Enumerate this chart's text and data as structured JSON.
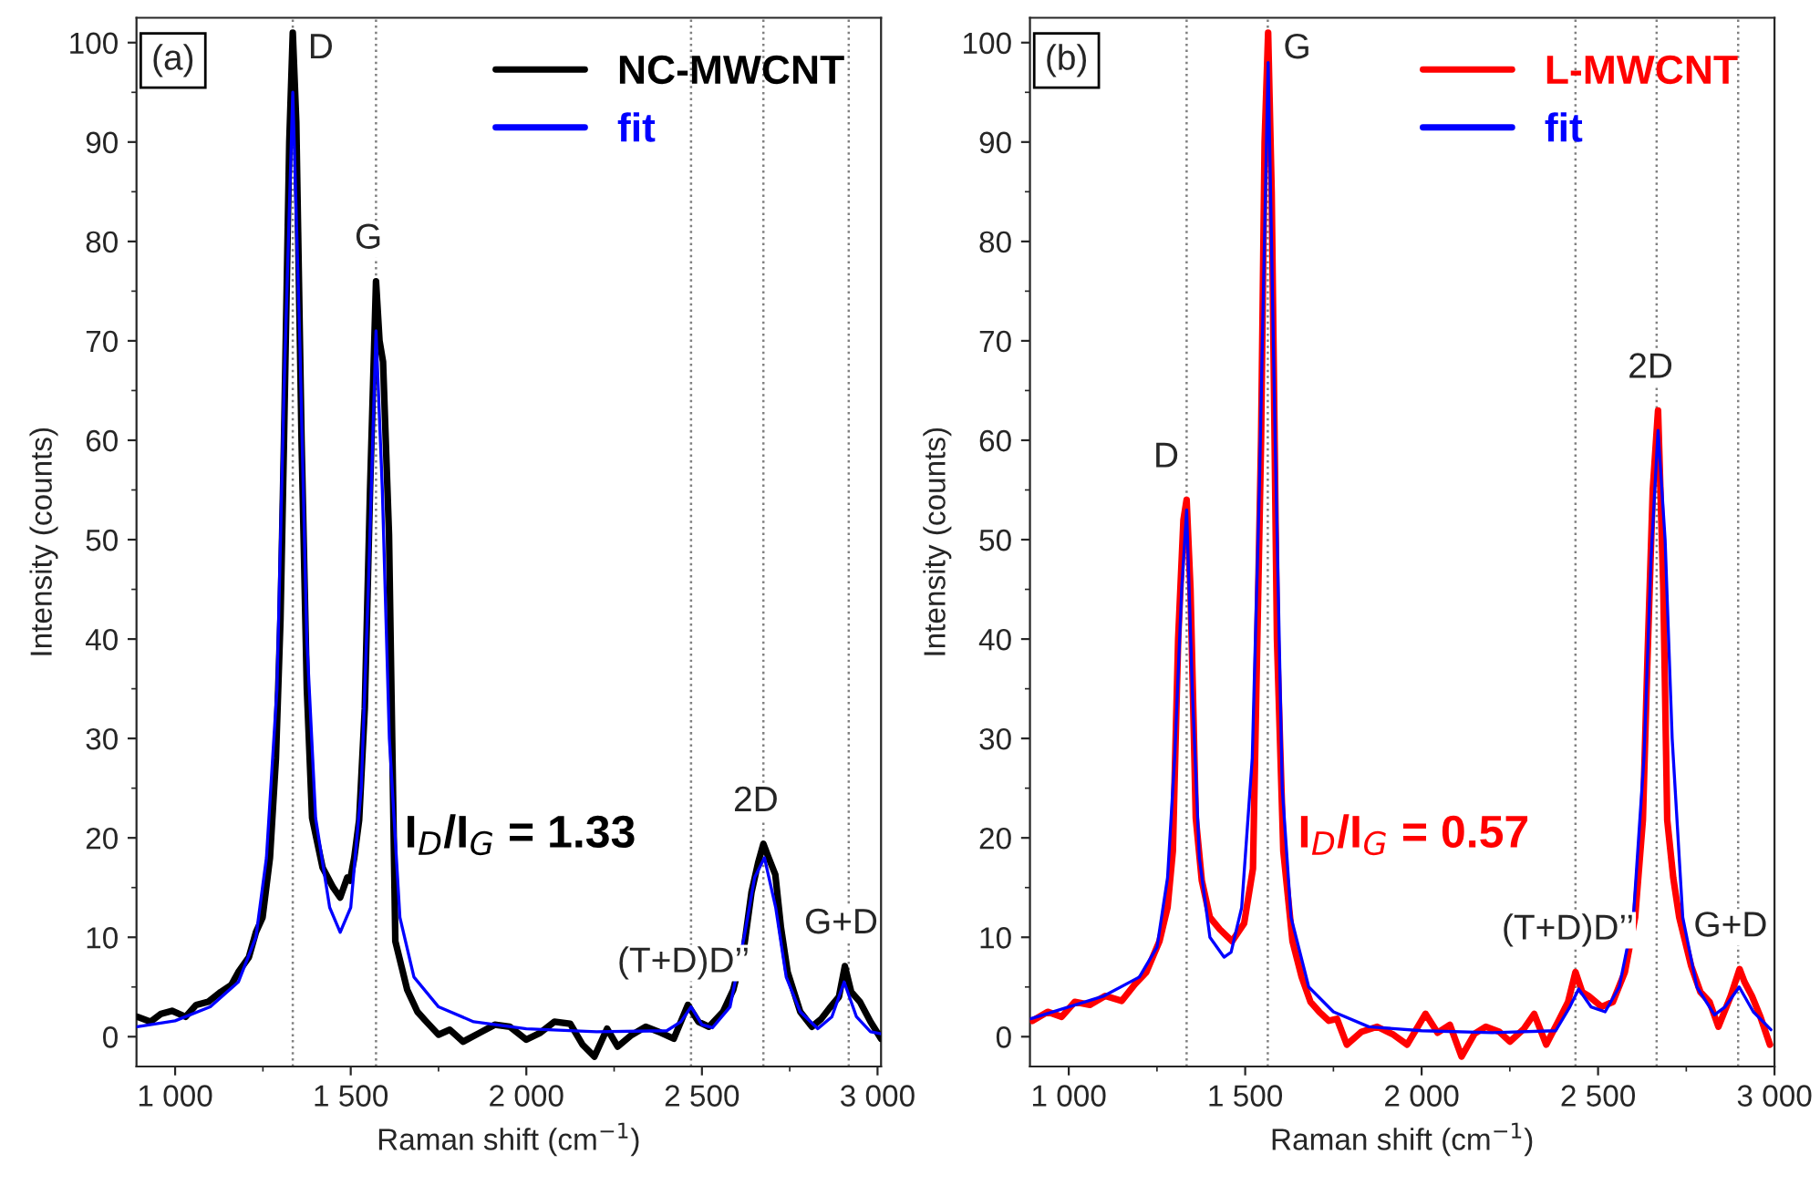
{
  "chart_data": [
    {
      "type": "line",
      "xlabel": "Raman shift (cm$^{−1}$)",
      "ylabel": "Intensity (counts)",
      "xlim": [
        890,
        3010
      ],
      "ylim": [
        -3,
        102.5
      ],
      "xticks": [
        {
          "value": 1000,
          "label": "1 000"
        },
        {
          "value": 1500,
          "label": "1 500"
        },
        {
          "value": 2000,
          "label": "2 000"
        },
        {
          "value": 2500,
          "label": "2 500"
        },
        {
          "value": 3000,
          "label": "3 000"
        }
      ],
      "yticks": [
        0,
        10,
        20,
        30,
        40,
        50,
        60,
        70,
        80,
        90,
        100
      ],
      "legend": "top right",
      "grid": false,
      "series": [
        {
          "name": "NC-MWCNT",
          "color": "#000000",
          "x": [
            892,
            930,
            960,
            991,
            1030,
            1060,
            1094,
            1130,
            1160,
            1180,
            1210,
            1230,
            1249,
            1270,
            1287,
            1300,
            1310,
            1325,
            1335,
            1345,
            1360,
            1375,
            1390,
            1420,
            1450,
            1470,
            1490,
            1498,
            1510,
            1524,
            1540,
            1555,
            1572,
            1582,
            1592,
            1609,
            1627,
            1645,
            1661,
            1690,
            1713,
            1750,
            1782,
            1820,
            1868,
            1910,
            1953,
            2000,
            2040,
            2080,
            2125,
            2160,
            2194,
            2230,
            2260,
            2297,
            2340,
            2383,
            2420,
            2460,
            2490,
            2520,
            2560,
            2589,
            2620,
            2641,
            2660,
            2675,
            2690,
            2709,
            2725,
            2744,
            2780,
            2813,
            2840,
            2864,
            2890,
            2907,
            2925,
            2950,
            2980,
            3010
          ],
          "values": [
            2.0,
            1.5,
            2.3,
            2.6,
            2.0,
            3.2,
            3.5,
            4.5,
            5.2,
            6.5,
            8.0,
            10.5,
            12,
            18,
            28,
            42,
            60,
            90,
            101,
            92,
            60,
            35,
            22,
            17,
            15,
            14,
            16,
            15.7,
            18,
            21.8,
            33,
            55,
            76,
            70,
            67.9,
            50.5,
            9.6,
            7.0,
            4.7,
            2.5,
            1.6,
            0.2,
            0.7,
            -0.5,
            0.4,
            1.2,
            1.0,
            -0.3,
            0.4,
            1.5,
            1.3,
            -0.8,
            -2.0,
            0.8,
            -1.0,
            0.1,
            1.0,
            0.4,
            -0.2,
            3.2,
            1.5,
            1.0,
            2.5,
            4.7,
            9.0,
            14.5,
            17.5,
            19.4,
            18.0,
            16.3,
            11.0,
            6.5,
            2.5,
            1.0,
            1.8,
            2.9,
            4.0,
            7.1,
            4.5,
            3.5,
            1.5,
            -0.2
          ]
        },
        {
          "name": "fit",
          "color": "#0000ff",
          "x": [
            892,
            1000,
            1100,
            1180,
            1230,
            1260,
            1290,
            1310,
            1335,
            1355,
            1375,
            1400,
            1440,
            1470,
            1500,
            1530,
            1550,
            1572,
            1590,
            1610,
            1640,
            1680,
            1750,
            1850,
            2000,
            2200,
            2400,
            2440,
            2469,
            2500,
            2530,
            2580,
            2620,
            2650,
            2678,
            2710,
            2740,
            2780,
            2830,
            2870,
            2905,
            2940,
            2980,
            3010
          ],
          "values": [
            1.0,
            1.6,
            3.0,
            5.5,
            10,
            18,
            35,
            65,
            95,
            70,
            40,
            22,
            13,
            10.5,
            13,
            25,
            45,
            71,
            55,
            30,
            12,
            6,
            3,
            1.5,
            0.8,
            0.5,
            0.6,
            1.5,
            3.0,
            1.2,
            0.9,
            3,
            10,
            16,
            18,
            13,
            6,
            2.5,
            0.8,
            2,
            5.5,
            2,
            0.5,
            0.3
          ]
        }
      ],
      "ref_lines": [
        {
          "axis": "x",
          "value": 1335,
          "color": "#808080",
          "line_style": "dotted"
        },
        {
          "axis": "x",
          "value": 1572,
          "color": "#808080",
          "line_style": "dotted"
        },
        {
          "axis": "x",
          "value": 2469,
          "color": "#808080",
          "line_style": "dotted"
        },
        {
          "axis": "x",
          "value": 2675,
          "color": "#808080",
          "line_style": "dotted"
        },
        {
          "axis": "x",
          "value": 2918,
          "color": "#808080",
          "line_style": "dotted"
        }
      ],
      "annotations": [
        "(a)",
        "I$_{D}$/I$_{G}$ = 1.33",
        {
          "text": "D",
          "x": 1335,
          "y": 101
        },
        {
          "text": "G",
          "x": 1572,
          "y": 76
        },
        {
          "text": "(T+D)D’’",
          "x": 2469,
          "y": 3.2
        },
        {
          "text": "2D",
          "x": 2675,
          "y": 19.4
        },
        {
          "text": "G+D",
          "x": 2918,
          "y": 7.1
        }
      ]
    },
    {
      "type": "line",
      "xlabel": "Raman shift (cm$^{−1}$)",
      "ylabel": "Intensity (counts)",
      "xlim": [
        890,
        3000
      ],
      "ylim": [
        -3,
        102.5
      ],
      "xticks": [
        {
          "value": 1000,
          "label": "1 000"
        },
        {
          "value": 1500,
          "label": "1 500"
        },
        {
          "value": 2000,
          "label": "2 000"
        },
        {
          "value": 2500,
          "label": "2 500"
        },
        {
          "value": 3000,
          "label": "3 000"
        }
      ],
      "yticks": [
        0,
        10,
        20,
        30,
        40,
        50,
        60,
        70,
        80,
        90,
        100
      ],
      "legend": "top right",
      "grid": false,
      "series": [
        {
          "name": "L-MWCNT",
          "color": "#ff0000",
          "x": [
            897,
            940,
            980,
            1017,
            1060,
            1103,
            1150,
            1188,
            1220,
            1257,
            1280,
            1295,
            1310,
            1325,
            1334,
            1345,
            1360,
            1377,
            1400,
            1428,
            1463,
            1497,
            1522,
            1545,
            1555,
            1565,
            1575,
            1590,
            1608,
            1634,
            1660,
            1685,
            1710,
            1737,
            1760,
            1788,
            1830,
            1874,
            1920,
            1959,
            2011,
            2045,
            2080,
            2113,
            2150,
            2182,
            2220,
            2250,
            2290,
            2319,
            2353,
            2388,
            2415,
            2436,
            2455,
            2473,
            2510,
            2542,
            2576,
            2605,
            2627,
            2640,
            2655,
            2670,
            2685,
            2696,
            2713,
            2730,
            2764,
            2790,
            2816,
            2841,
            2876,
            2901,
            2915,
            2936,
            2960,
            2987
          ],
          "values": [
            1.6,
            2.5,
            2.0,
            3.5,
            3.2,
            4.1,
            3.6,
            5.3,
            6.5,
            9.6,
            13,
            18.7,
            40,
            52,
            54,
            45,
            22,
            15.7,
            12,
            10.8,
            9.6,
            11.4,
            16.9,
            60,
            90,
            101,
            85,
            40,
            18.7,
            9.6,
            6.0,
            3.5,
            2.5,
            1.6,
            1.8,
            -0.8,
            0.5,
            1.0,
            0.2,
            -0.8,
            2.3,
            0.4,
            1.2,
            -2.0,
            0.3,
            1.0,
            0.5,
            -0.5,
            0.8,
            2.3,
            -0.8,
            1.6,
            3.5,
            6.5,
            4.5,
            4.1,
            3.0,
            3.5,
            6.5,
            12,
            21.8,
            38,
            55,
            63,
            45,
            21.8,
            16,
            12,
            7.1,
            4.5,
            3.5,
            1.0,
            4.1,
            6.8,
            5.5,
            4.1,
            2.0,
            -0.8
          ]
        },
        {
          "name": "fit",
          "color": "#0000ff",
          "x": [
            892,
            1000,
            1100,
            1200,
            1250,
            1280,
            1300,
            1320,
            1334,
            1350,
            1370,
            1400,
            1440,
            1460,
            1490,
            1520,
            1540,
            1565,
            1585,
            1605,
            1630,
            1680,
            1750,
            1850,
            2000,
            2200,
            2380,
            2420,
            2445,
            2480,
            2520,
            2560,
            2600,
            2630,
            2650,
            2670,
            2690,
            2710,
            2740,
            2780,
            2830,
            2860,
            2900,
            2940,
            2990
          ],
          "values": [
            1.8,
            3,
            4.1,
            6,
            9,
            16,
            28,
            45,
            53,
            35,
            18,
            10,
            8,
            8.5,
            13,
            28,
            55,
            98,
            60,
            25,
            12,
            5,
            2.5,
            1.0,
            0.6,
            0.4,
            0.6,
            3,
            4.8,
            3.0,
            2.5,
            5,
            12,
            28,
            48,
            61,
            50,
            30,
            12,
            5,
            2.2,
            3,
            5,
            2.5,
            0.7
          ]
        }
      ],
      "ref_lines": [
        {
          "axis": "x",
          "value": 1334,
          "color": "#808080",
          "line_style": "dotted"
        },
        {
          "axis": "x",
          "value": 1564,
          "color": "#808080",
          "line_style": "dotted"
        },
        {
          "axis": "x",
          "value": 2436,
          "color": "#808080",
          "line_style": "dotted"
        },
        {
          "axis": "x",
          "value": 2666,
          "color": "#808080",
          "line_style": "dotted"
        },
        {
          "axis": "x",
          "value": 2897,
          "color": "#808080",
          "line_style": "dotted"
        }
      ],
      "annotations": [
        "(b)",
        "I$_{D}$/I$_{G}$ = 0.57",
        {
          "text": "D",
          "x": 1334,
          "y": 54
        },
        {
          "text": "G",
          "x": 1565,
          "y": 101
        },
        {
          "text": "(T+D)D’’",
          "x": 2436,
          "y": 6.5
        },
        {
          "text": "2D",
          "x": 2670,
          "y": 63
        },
        {
          "text": "G+D",
          "x": 2897,
          "y": 6.8
        }
      ]
    }
  ]
}
